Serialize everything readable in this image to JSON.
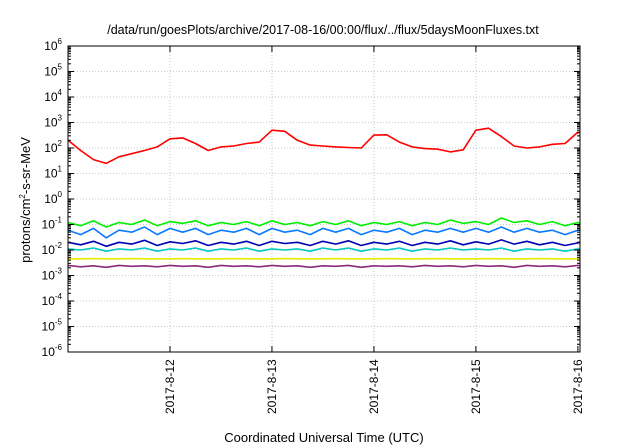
{
  "chart_data": {
    "type": "line",
    "title": "/data/run/goesPlots/archive/2017-08-16/00:00/flux/../flux/5daysMoonFluxes.txt",
    "xlabel": "Coordinated Universal Time (UTC)",
    "ylabel_parts": [
      "protons/cm",
      "2",
      "-s-sr-MeV"
    ],
    "y_scale": "log",
    "ylim": [
      1e-06,
      1000000.0
    ],
    "y_ticks": [
      {
        "value": 1e-06,
        "base": "10",
        "exp": "-6"
      },
      {
        "value": 1e-05,
        "base": "10",
        "exp": "-5"
      },
      {
        "value": 0.0001,
        "base": "10",
        "exp": "-4"
      },
      {
        "value": 0.001,
        "base": "10",
        "exp": "-3"
      },
      {
        "value": 0.01,
        "base": "10",
        "exp": "-2"
      },
      {
        "value": 0.1,
        "base": "10",
        "exp": "-1"
      },
      {
        "value": 1,
        "base": "10",
        "exp": "0"
      },
      {
        "value": 10,
        "base": "10",
        "exp": "1"
      },
      {
        "value": 100,
        "base": "10",
        "exp": "2"
      },
      {
        "value": 1000,
        "base": "10",
        "exp": "3"
      },
      {
        "value": 10000,
        "base": "10",
        "exp": "4"
      },
      {
        "value": 100000,
        "base": "10",
        "exp": "5"
      },
      {
        "value": 1000000,
        "base": "10",
        "exp": "6"
      }
    ],
    "xlim": [
      "2017-08-11T00:00",
      "2017-08-16T00:30"
    ],
    "x_ticks": [
      {
        "value": "2017-08-12T00:00",
        "label": "2017-8-12"
      },
      {
        "value": "2017-08-13T00:00",
        "label": "2017-8-13"
      },
      {
        "value": "2017-08-14T00:00",
        "label": "2017-8-14"
      },
      {
        "value": "2017-08-15T00:00",
        "label": "2017-8-15"
      },
      {
        "value": "2017-08-16T00:00",
        "label": "2017-8-16"
      }
    ],
    "grid": true,
    "x": [
      "2017-08-11T00:00",
      "2017-08-11T03:00",
      "2017-08-11T06:00",
      "2017-08-11T09:00",
      "2017-08-11T12:00",
      "2017-08-11T15:00",
      "2017-08-11T18:00",
      "2017-08-11T21:00",
      "2017-08-12T00:00",
      "2017-08-12T03:00",
      "2017-08-12T06:00",
      "2017-08-12T09:00",
      "2017-08-12T12:00",
      "2017-08-12T15:00",
      "2017-08-12T18:00",
      "2017-08-12T21:00",
      "2017-08-13T00:00",
      "2017-08-13T03:00",
      "2017-08-13T06:00",
      "2017-08-13T09:00",
      "2017-08-13T12:00",
      "2017-08-13T15:00",
      "2017-08-13T18:00",
      "2017-08-13T21:00",
      "2017-08-14T00:00",
      "2017-08-14T03:00",
      "2017-08-14T06:00",
      "2017-08-14T09:00",
      "2017-08-14T12:00",
      "2017-08-14T15:00",
      "2017-08-14T18:00",
      "2017-08-14T21:00",
      "2017-08-15T00:00",
      "2017-08-15T03:00",
      "2017-08-15T06:00",
      "2017-08-15T09:00",
      "2017-08-15T12:00",
      "2017-08-15T15:00",
      "2017-08-15T18:00",
      "2017-08-15T21:00",
      "2017-08-16T00:00",
      "2017-08-16T00:30"
    ],
    "series": [
      {
        "color": "#ff0000",
        "values": [
          200,
          80,
          35,
          25,
          45,
          60,
          80,
          110,
          230,
          250,
          150,
          80,
          110,
          120,
          150,
          170,
          500,
          450,
          200,
          130,
          120,
          110,
          105,
          100,
          320,
          330,
          170,
          110,
          95,
          90,
          70,
          85,
          500,
          600,
          280,
          120,
          100,
          110,
          140,
          150,
          420,
          400
        ]
      },
      {
        "color": "#00ee00",
        "values": [
          0.12,
          0.09,
          0.14,
          0.08,
          0.12,
          0.1,
          0.15,
          0.09,
          0.13,
          0.11,
          0.14,
          0.09,
          0.12,
          0.1,
          0.13,
          0.09,
          0.14,
          0.1,
          0.12,
          0.09,
          0.13,
          0.1,
          0.14,
          0.09,
          0.12,
          0.1,
          0.13,
          0.09,
          0.12,
          0.1,
          0.15,
          0.11,
          0.13,
          0.1,
          0.18,
          0.12,
          0.14,
          0.1,
          0.13,
          0.09,
          0.12,
          0.11
        ]
      },
      {
        "color": "#0a7aff",
        "values": [
          0.06,
          0.04,
          0.07,
          0.03,
          0.06,
          0.05,
          0.08,
          0.04,
          0.07,
          0.05,
          0.07,
          0.04,
          0.06,
          0.05,
          0.07,
          0.04,
          0.07,
          0.05,
          0.06,
          0.04,
          0.07,
          0.05,
          0.07,
          0.04,
          0.06,
          0.05,
          0.07,
          0.04,
          0.06,
          0.05,
          0.07,
          0.05,
          0.07,
          0.05,
          0.08,
          0.05,
          0.07,
          0.05,
          0.06,
          0.04,
          0.06,
          0.06
        ]
      },
      {
        "color": "#0000b4",
        "values": [
          0.02,
          0.016,
          0.022,
          0.014,
          0.02,
          0.017,
          0.024,
          0.015,
          0.021,
          0.018,
          0.023,
          0.015,
          0.02,
          0.017,
          0.022,
          0.015,
          0.022,
          0.018,
          0.02,
          0.015,
          0.022,
          0.017,
          0.023,
          0.015,
          0.02,
          0.017,
          0.022,
          0.015,
          0.02,
          0.017,
          0.023,
          0.016,
          0.021,
          0.017,
          0.025,
          0.017,
          0.022,
          0.016,
          0.02,
          0.015,
          0.019,
          0.02
        ]
      },
      {
        "color": "#00c8c8",
        "values": [
          0.011,
          0.01,
          0.012,
          0.009,
          0.011,
          0.01,
          0.012,
          0.009,
          0.011,
          0.01,
          0.012,
          0.009,
          0.011,
          0.01,
          0.012,
          0.009,
          0.011,
          0.01,
          0.011,
          0.009,
          0.012,
          0.01,
          0.012,
          0.009,
          0.011,
          0.01,
          0.012,
          0.009,
          0.011,
          0.01,
          0.012,
          0.01,
          0.011,
          0.01,
          0.012,
          0.009,
          0.011,
          0.01,
          0.011,
          0.009,
          0.011,
          0.011
        ]
      },
      {
        "color": "#e8e800",
        "values": [
          0.0045,
          0.0045,
          0.0046,
          0.0045,
          0.0045,
          0.0046,
          0.0045,
          0.0045,
          0.0045,
          0.0046,
          0.0045,
          0.0045,
          0.0045,
          0.0046,
          0.0045,
          0.0045,
          0.0045,
          0.0046,
          0.0045,
          0.0045,
          0.0045,
          0.0046,
          0.0045,
          0.0045,
          0.0045,
          0.0046,
          0.0045,
          0.0045,
          0.0045,
          0.0046,
          0.0045,
          0.0045,
          0.0045,
          0.0046,
          0.0045,
          0.0045,
          0.0045,
          0.0046,
          0.0045,
          0.0045,
          0.0045,
          0.0045
        ]
      },
      {
        "color": "#8b2a7a",
        "values": [
          0.0025,
          0.0022,
          0.0024,
          0.0021,
          0.0025,
          0.0023,
          0.0024,
          0.0022,
          0.0025,
          0.0023,
          0.0024,
          0.0021,
          0.0025,
          0.0023,
          0.0024,
          0.0022,
          0.0025,
          0.0023,
          0.0024,
          0.0021,
          0.0024,
          0.0023,
          0.0025,
          0.0021,
          0.0024,
          0.0023,
          0.0024,
          0.0022,
          0.0025,
          0.0023,
          0.0024,
          0.0022,
          0.0025,
          0.0023,
          0.0024,
          0.0021,
          0.0025,
          0.0023,
          0.0024,
          0.0022,
          0.0025,
          0.0024
        ]
      }
    ]
  }
}
